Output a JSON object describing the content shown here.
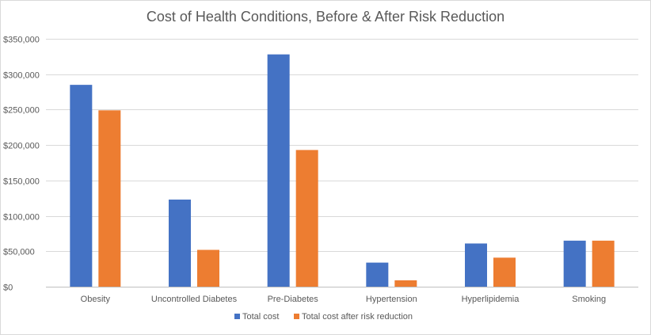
{
  "chart_data": {
    "type": "bar",
    "title": "Cost of Health Conditions, Before & After Risk Reduction",
    "xlabel": "",
    "ylabel": "",
    "categories": [
      "Obesity",
      "Uncontrolled Diabetes",
      "Pre-Diabetes",
      "Hypertension",
      "Hyperlipidemia",
      "Smoking"
    ],
    "series": [
      {
        "name": "Total cost",
        "color": "#4472c4",
        "values": [
          285000,
          123000,
          328000,
          34000,
          61000,
          65000
        ]
      },
      {
        "name": "Total cost after risk reduction",
        "color": "#ed7d31",
        "values": [
          249000,
          52000,
          193000,
          9000,
          41000,
          65000
        ]
      }
    ],
    "ylim": [
      0,
      350000
    ],
    "yticks": [
      0,
      50000,
      100000,
      150000,
      200000,
      250000,
      300000,
      350000
    ],
    "ytick_labels": [
      "$0",
      "$50,000",
      "$100,000",
      "$150,000",
      "$200,000",
      "$250,000",
      "$300,000",
      "$350,000"
    ],
    "grid": true,
    "legend_position": "bottom"
  }
}
